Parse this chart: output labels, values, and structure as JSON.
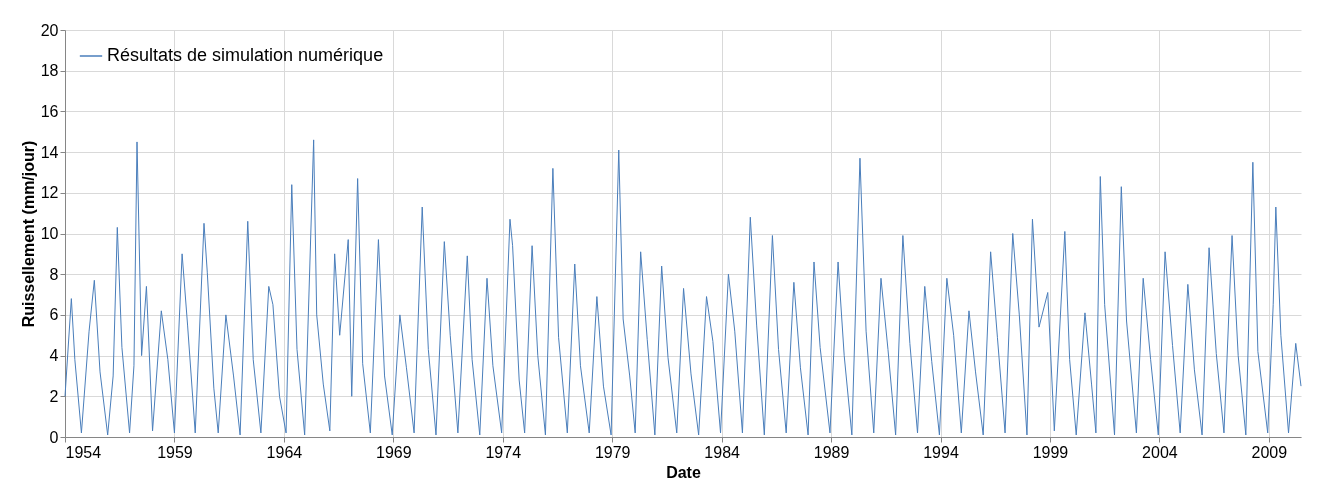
{
  "chart_data": {
    "type": "line",
    "xlabel": "Date",
    "ylabel": "Ruissellement  (mm/jour)",
    "xlim": [
      1954,
      2010.47
    ],
    "xticks": [
      1954,
      1959,
      1964,
      1969,
      1974,
      1979,
      1984,
      1989,
      1994,
      1999,
      2004,
      2009
    ],
    "ylim": [
      0,
      20
    ],
    "yticks": [
      0,
      2,
      4,
      6,
      8,
      10,
      12,
      14,
      16,
      18,
      20
    ],
    "grid": true,
    "legend": "top left",
    "marker": "none",
    "line_style": "solid",
    "series": [
      {
        "name": "Résultats de simulation numérique",
        "color": "#4a7ebb",
        "x": [
          1954.0,
          1954.29,
          1954.45,
          1954.75,
          1955.1,
          1955.34,
          1955.6,
          1955.95,
          1956.2,
          1956.39,
          1956.6,
          1956.95,
          1957.15,
          1957.29,
          1957.5,
          1957.72,
          1958.0,
          1958.4,
          1958.7,
          1959.0,
          1959.35,
          1959.6,
          1959.95,
          1960.35,
          1960.5,
          1960.8,
          1961.0,
          1961.35,
          1961.7,
          1962.0,
          1962.35,
          1962.6,
          1962.95,
          1963.31,
          1963.5,
          1963.8,
          1964.1,
          1964.36,
          1964.6,
          1964.95,
          1965.36,
          1965.5,
          1965.8,
          1966.1,
          1966.32,
          1966.55,
          1966.94,
          1967.1,
          1967.37,
          1967.6,
          1967.95,
          1968.32,
          1968.6,
          1968.95,
          1969.3,
          1969.6,
          1969.95,
          1970.32,
          1970.6,
          1970.95,
          1971.33,
          1971.6,
          1971.95,
          1972.38,
          1972.6,
          1972.95,
          1973.28,
          1973.55,
          1973.95,
          1974.33,
          1974.45,
          1974.75,
          1975.0,
          1975.34,
          1975.6,
          1975.95,
          1976.29,
          1976.55,
          1976.95,
          1977.29,
          1977.55,
          1977.95,
          1978.3,
          1978.6,
          1978.95,
          1979.3,
          1979.5,
          1979.8,
          1980.05,
          1980.3,
          1980.6,
          1980.95,
          1981.26,
          1981.55,
          1981.95,
          1982.26,
          1982.6,
          1982.95,
          1983.31,
          1983.6,
          1983.95,
          1984.31,
          1984.6,
          1984.95,
          1985.31,
          1985.6,
          1985.95,
          1986.32,
          1986.6,
          1986.95,
          1987.3,
          1987.6,
          1987.95,
          1988.22,
          1988.5,
          1988.95,
          1989.32,
          1989.6,
          1989.95,
          1990.32,
          1990.6,
          1990.95,
          1991.28,
          1991.6,
          1991.95,
          1992.28,
          1992.6,
          1992.95,
          1993.28,
          1993.6,
          1993.95,
          1994.29,
          1994.6,
          1994.95,
          1995.3,
          1995.6,
          1995.95,
          1996.29,
          1996.6,
          1996.95,
          1997.3,
          1997.6,
          1997.95,
          1998.2,
          1998.5,
          1998.9,
          1999.2,
          1999.68,
          1999.9,
          2000.2,
          2000.6,
          2000.9,
          2001.1,
          2001.3,
          2001.5,
          2001.95,
          2002.26,
          2002.5,
          2002.95,
          2003.26,
          2003.6,
          2003.95,
          2004.26,
          2004.6,
          2004.95,
          2005.3,
          2005.6,
          2005.95,
          2006.27,
          2006.6,
          2006.95,
          2007.32,
          2007.6,
          2007.95,
          2008.27,
          2008.5,
          2008.95,
          2009.2,
          2009.32,
          2009.55,
          2009.9,
          2010.23,
          2010.47
        ],
        "values": [
          2.0,
          6.8,
          3.8,
          0.2,
          5.2,
          7.7,
          3.2,
          0.1,
          3.0,
          10.3,
          4.4,
          0.2,
          3.5,
          14.5,
          4.0,
          7.4,
          0.3,
          6.2,
          3.8,
          0.2,
          9.0,
          5.5,
          0.2,
          10.5,
          8.1,
          2.4,
          0.2,
          6.0,
          3.0,
          0.1,
          10.6,
          3.8,
          0.2,
          7.4,
          6.5,
          2.0,
          0.2,
          12.4,
          4.3,
          0.1,
          14.6,
          6.0,
          2.6,
          0.3,
          9.0,
          5.0,
          9.7,
          2.0,
          12.7,
          3.6,
          0.2,
          9.7,
          3.0,
          0.1,
          6.0,
          3.4,
          0.2,
          11.3,
          4.3,
          0.1,
          9.6,
          5.0,
          0.2,
          8.9,
          3.8,
          0.1,
          7.8,
          3.5,
          0.2,
          10.7,
          9.4,
          2.8,
          0.2,
          9.4,
          4.0,
          0.1,
          13.2,
          4.9,
          0.2,
          8.5,
          3.5,
          0.2,
          6.9,
          2.5,
          0.1,
          14.1,
          5.8,
          3.0,
          0.2,
          9.1,
          4.8,
          0.1,
          8.4,
          3.9,
          0.2,
          7.3,
          3.1,
          0.1,
          6.9,
          4.7,
          0.2,
          8.0,
          5.2,
          0.2,
          10.8,
          5.5,
          0.1,
          9.9,
          4.3,
          0.2,
          7.6,
          3.4,
          0.1,
          8.6,
          4.4,
          0.2,
          8.6,
          4.0,
          0.1,
          13.7,
          5.2,
          0.2,
          7.8,
          4.3,
          0.1,
          9.9,
          4.6,
          0.2,
          7.4,
          3.7,
          0.1,
          7.8,
          5.0,
          0.2,
          6.2,
          3.2,
          0.1,
          9.1,
          4.9,
          0.2,
          10.0,
          6.0,
          0.1,
          10.7,
          5.4,
          7.1,
          0.3,
          10.1,
          3.8,
          0.1,
          6.1,
          2.6,
          0.2,
          12.8,
          6.5,
          0.1,
          12.3,
          5.7,
          0.2,
          7.8,
          3.8,
          0.1,
          9.1,
          4.5,
          0.2,
          7.5,
          3.3,
          0.1,
          9.3,
          4.1,
          0.2,
          9.9,
          4.0,
          0.1,
          13.5,
          4.2,
          0.2,
          6.5,
          11.3,
          5.0,
          0.2,
          4.6,
          2.5
        ]
      }
    ]
  }
}
